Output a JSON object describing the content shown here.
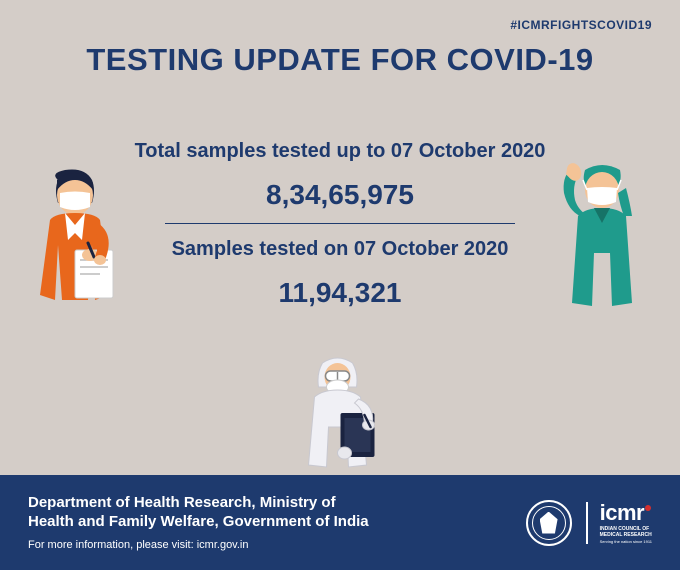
{
  "hashtag": "#ICMRFIGHTSCOVID19",
  "title": "TESTING UPDATE FOR COVID-19",
  "stats": {
    "total": {
      "label": "Total samples tested up to  07 October 2020",
      "value": "8,34,65,975"
    },
    "daily": {
      "label": "Samples tested on 07 October 2020",
      "value": "11,94,321"
    }
  },
  "footer": {
    "department": "Department of Health Research, Ministry of\nHealth and Family Welfare, Government of India",
    "info": "For more information, please visit: icmr.gov.in"
  },
  "icmr": {
    "name": "icmr",
    "full": "INDIAN COUNCIL OF\nMEDICAL RESEARCH",
    "tagline": "Serving the nation since 1911"
  },
  "colors": {
    "background": "#d4cdc8",
    "primary": "#1e3a6e",
    "white": "#ffffff",
    "nurse_coat": "#e8671c",
    "nurse_skin": "#f4c396",
    "nurse_hair": "#1a2340",
    "surgeon_scrub": "#1f9b8c",
    "surgeon_skin": "#f4c396",
    "ppe_suit": "#f0f0f5",
    "clipboard": "#1a2340"
  }
}
